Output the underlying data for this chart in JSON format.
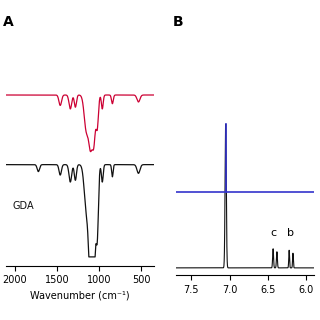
{
  "fig_width": 3.2,
  "fig_height": 3.2,
  "fig_dpi": 100,
  "background_color": "#ffffff",
  "panel_A_label": "A",
  "panel_B_label": "B",
  "ftir_xlim": [
    2100,
    350
  ],
  "ftir_xlabel": "Wavenumber (cm⁻¹)",
  "ftir_xticks": [
    2000,
    1500,
    1000,
    500
  ],
  "ftir_label_GDA": "GDA",
  "peg_color": "#cc0033",
  "pegda_color": "#111111",
  "blue_color": "#3333cc",
  "nmr_xlim": [
    7.7,
    5.9
  ],
  "nmr_xlabel": "",
  "nmr_xticks": [
    7.5,
    7.0,
    6.5,
    6.0
  ],
  "nmr_label_c": "c",
  "nmr_label_b": "b",
  "label_fontsize": 8,
  "tick_fontsize": 7,
  "annot_fontsize": 8
}
